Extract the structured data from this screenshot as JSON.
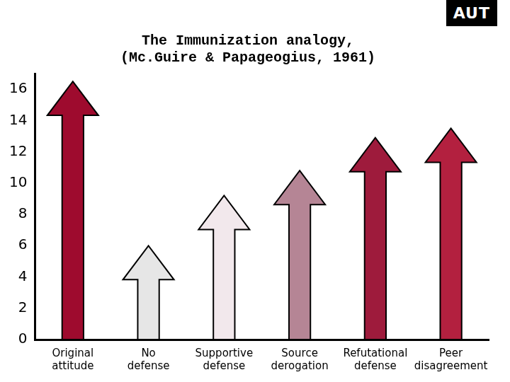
{
  "chart_data": {
    "type": "bar",
    "title": [
      "The Immunization analogy,",
      "(Mc.Guire & Papageogius, 1961)"
    ],
    "categories": [
      "Original attitude",
      "No defense",
      "Supportive defense",
      "Source derogation",
      "Refutational defense",
      "Peer disagreement"
    ],
    "values": [
      16.5,
      6.0,
      9.2,
      10.8,
      12.9,
      13.5
    ],
    "colors": [
      "#9e0b2e",
      "#e6e6e6",
      "#f2e8ec",
      "#b58595",
      "#9e1b3c",
      "#b3203f"
    ],
    "ylim": [
      0,
      17
    ],
    "yticks": [
      0,
      2,
      4,
      6,
      8,
      10,
      12,
      14,
      16
    ],
    "grid": false,
    "annotations": [
      {
        "text": "AUT"
      }
    ]
  }
}
